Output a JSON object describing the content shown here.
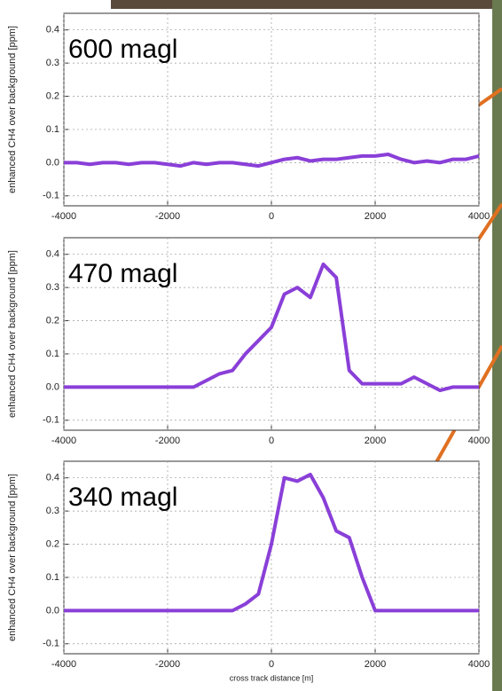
{
  "chart_data": [
    {
      "type": "line",
      "annotation": "600 magl",
      "y_label": "enhanced CH4 over background [ppm]",
      "x": [
        -4000,
        -3750,
        -3500,
        -3250,
        -3000,
        -2750,
        -2500,
        -2250,
        -2000,
        -1750,
        -1500,
        -1250,
        -1000,
        -750,
        -500,
        -250,
        0,
        250,
        500,
        750,
        1000,
        1250,
        1500,
        1750,
        2000,
        2250,
        2500,
        2750,
        3000,
        3250,
        3500,
        3750,
        4000
      ],
      "values": [
        0,
        0,
        -0.005,
        0,
        0,
        -0.005,
        0,
        0,
        -0.005,
        -0.01,
        0,
        -0.005,
        0,
        0,
        -0.005,
        -0.01,
        0,
        0.01,
        0.015,
        0.005,
        0.01,
        0.01,
        0.015,
        0.02,
        0.02,
        0.025,
        0.01,
        0,
        0.005,
        0,
        0.01,
        0.01,
        0.02
      ],
      "color": "#8a3fd8",
      "xlim": [
        -4000,
        4000
      ],
      "ylim": [
        -0.13,
        0.45
      ],
      "xticks": [
        -4000,
        -2000,
        0,
        2000,
        4000
      ],
      "yticks": [
        -0.1,
        {
          "value": 0,
          "label": "0.0"
        },
        0.1,
        0.2,
        0.3,
        0.4
      ],
      "grid": true
    },
    {
      "type": "line",
      "annotation": "470 magl",
      "y_label": "enhanced CH4 over background [ppm]",
      "x": [
        -4000,
        -3750,
        -3500,
        -3250,
        -3000,
        -2750,
        -2500,
        -2250,
        -2000,
        -1750,
        -1500,
        -1250,
        -1000,
        -750,
        -500,
        -250,
        0,
        250,
        500,
        750,
        1000,
        1250,
        1500,
        1750,
        2000,
        2250,
        2500,
        2750,
        3000,
        3250,
        3500,
        3750,
        4000
      ],
      "values": [
        0,
        0,
        0,
        0,
        0,
        0,
        0,
        0,
        0,
        0,
        0,
        0.02,
        0.04,
        0.05,
        0.1,
        0.14,
        0.18,
        0.28,
        0.3,
        0.27,
        0.37,
        0.33,
        0.05,
        0.01,
        0.01,
        0.01,
        0.01,
        0.03,
        0.01,
        -0.01,
        0,
        0,
        0
      ],
      "color": "#8a3fd8",
      "xlim": [
        -4000,
        4000
      ],
      "ylim": [
        -0.13,
        0.45
      ],
      "xticks": [
        -4000,
        -2000,
        0,
        2000,
        4000
      ],
      "yticks": [
        -0.1,
        {
          "value": 0,
          "label": "0.0"
        },
        0.1,
        0.2,
        0.3,
        0.4
      ],
      "grid": true
    },
    {
      "type": "line",
      "annotation": "340 magl",
      "y_label": "enhanced CH4 over background [ppm]",
      "x_label": "cross track distance [m]",
      "x": [
        -4000,
        -3750,
        -3500,
        -3250,
        -3000,
        -2750,
        -2500,
        -2250,
        -2000,
        -1750,
        -1500,
        -1250,
        -1000,
        -750,
        -500,
        -250,
        0,
        250,
        500,
        750,
        1000,
        1250,
        1500,
        1750,
        2000,
        2250,
        2500,
        2750,
        3000,
        3250,
        3500,
        3750,
        4000
      ],
      "values": [
        0,
        0,
        0,
        0,
        0,
        0,
        0,
        0,
        0,
        0,
        0,
        0,
        0,
        0,
        0.02,
        0.05,
        0.2,
        0.4,
        0.39,
        0.41,
        0.34,
        0.24,
        0.22,
        0.1,
        0,
        0,
        0,
        0,
        0,
        0,
        0,
        0,
        0
      ],
      "color": "#8a3fd8",
      "xlim": [
        -4000,
        4000
      ],
      "ylim": [
        -0.13,
        0.45
      ],
      "xticks": [
        -4000,
        -2000,
        0,
        2000,
        4000
      ],
      "yticks": [
        -0.1,
        {
          "value": 0,
          "label": "0.0"
        },
        0.1,
        0.2,
        0.3,
        0.4
      ],
      "grid": true
    }
  ]
}
